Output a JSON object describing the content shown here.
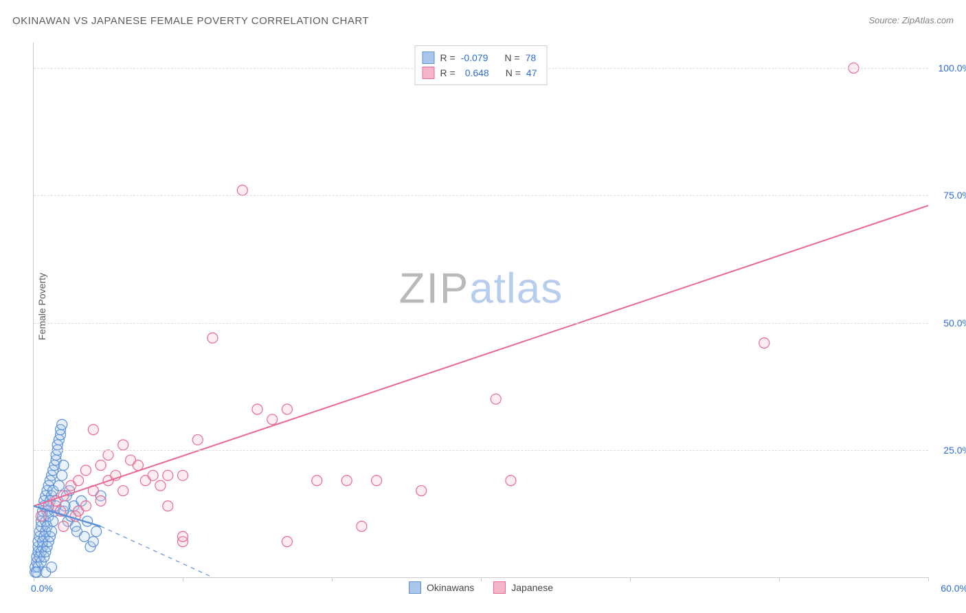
{
  "header": {
    "title": "OKINAWAN VS JAPANESE FEMALE POVERTY CORRELATION CHART",
    "source": "Source: ZipAtlas.com"
  },
  "chart": {
    "type": "scatter",
    "ylabel": "Female Poverty",
    "xlim": [
      0,
      60
    ],
    "ylim": [
      0,
      105
    ],
    "x_ticks": [
      0,
      10,
      20,
      30,
      40,
      50,
      60
    ],
    "y_grid": [
      25,
      50,
      75,
      100
    ],
    "y_tick_labels": [
      "25.0%",
      "50.0%",
      "75.0%",
      "100.0%"
    ],
    "x_origin_label": "0.0%",
    "x_end_label": "60.0%",
    "grid_color": "#dcdcdc",
    "axis_color": "#c9c9c9",
    "background_color": "#ffffff",
    "tick_label_color": "#2e6bd6",
    "marker_radius": 7.5,
    "marker_fill_opacity": 0.25,
    "trend_line_width": 2,
    "series": {
      "okinawans": {
        "label": "Okinawans",
        "color_stroke": "#5b8fd6",
        "color_fill": "#a9c7ec",
        "R": "-0.079",
        "N": "78",
        "trend": {
          "x1": 0,
          "y1": 14,
          "x2": 4.5,
          "y2": 10,
          "dashed_ext": {
            "x2": 12,
            "y2": 0
          }
        },
        "points": [
          [
            0.1,
            1
          ],
          [
            0.1,
            2
          ],
          [
            0.2,
            3
          ],
          [
            0.2,
            4
          ],
          [
            0.3,
            2
          ],
          [
            0.3,
            5
          ],
          [
            0.3,
            6
          ],
          [
            0.3,
            7
          ],
          [
            0.4,
            4
          ],
          [
            0.4,
            8
          ],
          [
            0.4,
            9
          ],
          [
            0.5,
            3
          ],
          [
            0.5,
            5
          ],
          [
            0.5,
            10
          ],
          [
            0.5,
            11
          ],
          [
            0.6,
            6
          ],
          [
            0.6,
            7
          ],
          [
            0.6,
            12
          ],
          [
            0.6,
            13
          ],
          [
            0.7,
            4
          ],
          [
            0.7,
            8
          ],
          [
            0.7,
            14
          ],
          [
            0.7,
            15
          ],
          [
            0.8,
            5
          ],
          [
            0.8,
            9
          ],
          [
            0.8,
            11
          ],
          [
            0.8,
            16
          ],
          [
            0.9,
            6
          ],
          [
            0.9,
            10
          ],
          [
            0.9,
            13
          ],
          [
            0.9,
            17
          ],
          [
            1.0,
            7
          ],
          [
            1.0,
            12
          ],
          [
            1.0,
            14
          ],
          [
            1.0,
            18
          ],
          [
            1.1,
            8
          ],
          [
            1.1,
            15
          ],
          [
            1.1,
            19
          ],
          [
            1.2,
            9
          ],
          [
            1.2,
            16
          ],
          [
            1.2,
            20
          ],
          [
            1.3,
            11
          ],
          [
            1.3,
            17
          ],
          [
            1.3,
            21
          ],
          [
            1.4,
            13
          ],
          [
            1.4,
            22
          ],
          [
            1.5,
            14
          ],
          [
            1.5,
            23
          ],
          [
            1.5,
            24
          ],
          [
            1.6,
            25
          ],
          [
            1.6,
            26
          ],
          [
            1.7,
            18
          ],
          [
            1.7,
            27
          ],
          [
            1.8,
            28
          ],
          [
            1.8,
            29
          ],
          [
            1.9,
            20
          ],
          [
            1.9,
            30
          ],
          [
            2.0,
            22
          ],
          [
            2.0,
            13
          ],
          [
            2.1,
            14
          ],
          [
            2.2,
            16
          ],
          [
            2.3,
            11
          ],
          [
            2.4,
            17
          ],
          [
            2.5,
            12
          ],
          [
            2.7,
            14
          ],
          [
            2.8,
            10
          ],
          [
            2.9,
            9
          ],
          [
            3.0,
            13
          ],
          [
            3.2,
            15
          ],
          [
            3.4,
            8
          ],
          [
            3.6,
            11
          ],
          [
            3.8,
            6
          ],
          [
            4.0,
            7
          ],
          [
            4.2,
            9
          ],
          [
            4.5,
            16
          ],
          [
            0.2,
            1
          ],
          [
            0.8,
            1
          ],
          [
            1.2,
            2
          ]
        ]
      },
      "japanese": {
        "label": "Japanese",
        "color_stroke": "#e9688f",
        "color_fill": "#f5b6c9",
        "R": "0.648",
        "N": "47",
        "trend": {
          "x1": 0,
          "y1": 14,
          "x2": 60,
          "y2": 73
        },
        "points": [
          [
            0.5,
            12
          ],
          [
            1,
            14
          ],
          [
            1.5,
            15
          ],
          [
            2,
            10
          ],
          [
            2,
            16
          ],
          [
            2.5,
            18
          ],
          [
            3,
            13
          ],
          [
            3,
            19
          ],
          [
            3.5,
            21
          ],
          [
            4,
            17
          ],
          [
            4,
            29
          ],
          [
            4.5,
            15
          ],
          [
            5,
            19
          ],
          [
            5,
            24
          ],
          [
            5.5,
            20
          ],
          [
            6,
            17
          ],
          [
            6,
            26
          ],
          [
            7,
            22
          ],
          [
            7.5,
            19
          ],
          [
            8,
            20
          ],
          [
            8.5,
            18
          ],
          [
            9,
            14
          ],
          [
            9,
            20
          ],
          [
            10,
            7
          ],
          [
            10,
            8
          ],
          [
            10,
            20
          ],
          [
            11,
            27
          ],
          [
            12,
            47
          ],
          [
            14,
            76
          ],
          [
            15,
            33
          ],
          [
            16,
            31
          ],
          [
            17,
            7
          ],
          [
            17,
            33
          ],
          [
            19,
            19
          ],
          [
            21,
            19
          ],
          [
            22,
            10
          ],
          [
            23,
            19
          ],
          [
            26,
            17
          ],
          [
            31,
            35
          ],
          [
            32,
            19
          ],
          [
            49,
            46
          ],
          [
            55,
            100
          ],
          [
            3.5,
            14
          ],
          [
            4.5,
            22
          ],
          [
            6.5,
            23
          ],
          [
            2.8,
            12
          ],
          [
            1.8,
            13
          ]
        ]
      }
    }
  },
  "watermark": {
    "part1": "ZIP",
    "part2": "atlas"
  },
  "top_legend": {
    "rows": [
      {
        "series": "okinawans",
        "r_label": "R =",
        "n_label": "N ="
      },
      {
        "series": "japanese",
        "r_label": "R =",
        "n_label": "N ="
      }
    ]
  }
}
